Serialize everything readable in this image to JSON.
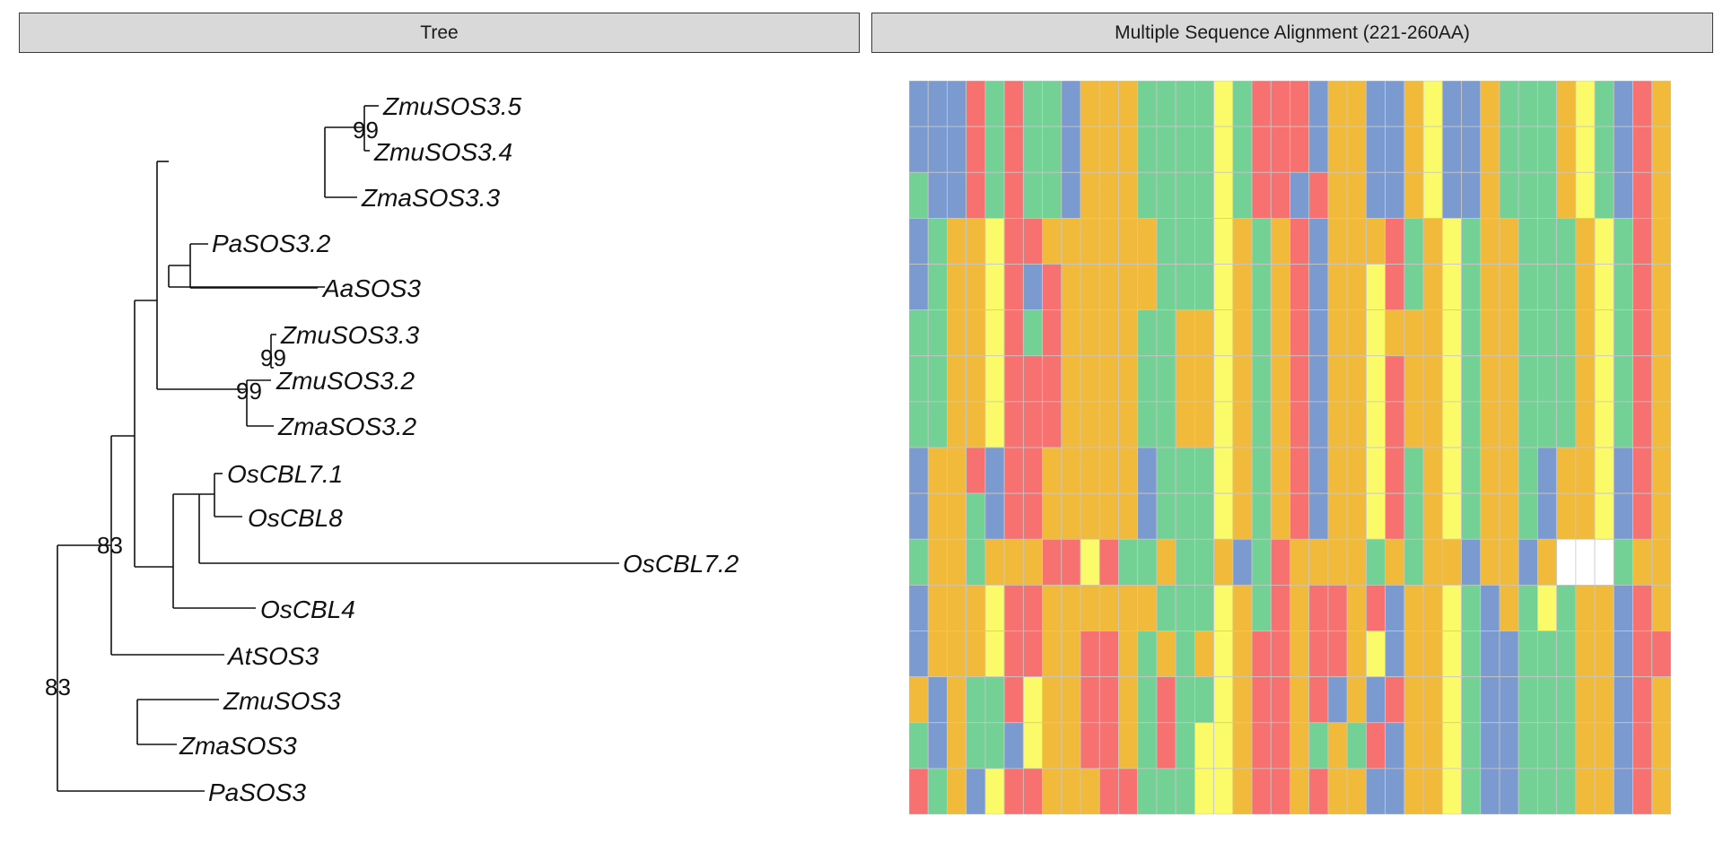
{
  "panels": {
    "tree_title": "Tree",
    "msa_title": "Multiple Sequence Alignment (221-260AA)"
  },
  "residue_colors": {
    "B": "#7b9bd0",
    "R": "#f87171",
    "G": "#74d195",
    "O": "#f2ba3a",
    "Y": "#fbfb6a",
    "W": "#ffffff"
  },
  "tree": {
    "leaves": [
      "ZmuSOS3.5",
      "ZmuSOS3.4",
      "ZmaSOS3.3",
      "PaSOS3.2",
      "AaSOS3",
      "ZmuSOS3.3",
      "ZmuSOS3.2",
      "ZmaSOS3.2",
      "OsCBL7.1",
      "OsCBL8",
      "OsCBL7.2",
      "OsCBL4",
      "AtSOS3",
      "ZmuSOS3",
      "ZmaSOS3",
      "PaSOS3"
    ],
    "bootstrap": [
      "99",
      "99",
      "99",
      "83",
      "83"
    ]
  },
  "alignment": {
    "rows": [
      "BBBRGRGGBOOOGGGGYGRRRBOOBBOYBBOGGGOYGBRO",
      "BBBRGRGGBOOOGGGGYGRRRBOOBBOYBBOGGGOYGBRO",
      "GBBRGRGGBOOOGGGGYGRRBROOBBOYBBOGGGOYGBRO",
      "BGOOYRROOOOOOGGGYOGORBOOORGOYGOOGGGOYGRO",
      "BGOOYRBROOOOOGGGYOGORBOOYRGOYGOOGGGOYGRO",
      "GGOOYRGROOOOGGOOYOGORBOOYOOOYGOOGGGOYGRO",
      "GGOOYRRROOOOGGOOYOGORBOOYROOYGOOGGGOYGRO",
      "GGOOYRRROOOOGGOOYOGORBOOYROOYGOOGGGOYGRO",
      "BOORBRROOOOOBGGGYOGORBOOYRGOYGOOGBOOYBRO",
      "BOOGBRROOOOOBGGGYOGORBOOYRGOYGOOGBOOYBRO",
      "GOOGOOORRYRGGOGGOBGROOOOGOGOOBOOBOWWWGOO",
      "BOOOYRROOOOOOGGGYOGRORRORBOOYGBOGYGOOBRO",
      "BOOOYRROORROGOGOYORRORROYBOOYGBBGGGOOBRR",
      "OBOGGRYOORROGRGGYORRORBOBROOYGBBGGGOOBRO",
      "GBOGGBYOORROGRGYYORROGOGRBOOYGBBGGGOOBRO",
      "RGOBYRROOORRGGGYYORROROOBBOOYGBBGGGOOBRO"
    ]
  }
}
